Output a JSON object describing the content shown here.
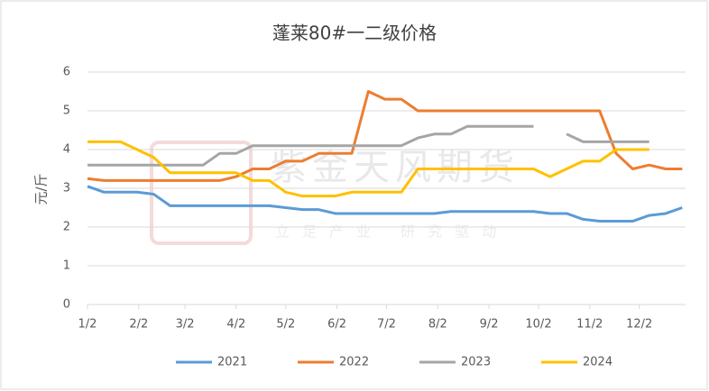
{
  "chart_data": {
    "type": "line",
    "title": "蓬莱80#一二级价格",
    "ylabel": "元/斤",
    "watermark": [
      "紫金天风期货",
      "立足产业 研究驱动"
    ],
    "x": [
      0,
      10,
      20,
      30,
      40,
      50,
      60,
      70,
      80,
      90,
      100,
      110,
      120,
      130,
      140,
      150,
      160,
      170,
      180,
      190,
      200,
      210,
      220,
      230,
      240,
      250,
      260,
      270,
      280,
      290,
      300,
      310,
      320,
      330,
      340,
      350,
      360
    ],
    "xlim": [
      0,
      362
    ],
    "xticks": [
      {
        "value": 0,
        "label": "1/2"
      },
      {
        "value": 31,
        "label": "2/2"
      },
      {
        "value": 59,
        "label": "3/2"
      },
      {
        "value": 90,
        "label": "4/2"
      },
      {
        "value": 120,
        "label": "5/2"
      },
      {
        "value": 151,
        "label": "6/2"
      },
      {
        "value": 181,
        "label": "7/2"
      },
      {
        "value": 212,
        "label": "8/2"
      },
      {
        "value": 243,
        "label": "9/2"
      },
      {
        "value": 273,
        "label": "10/2"
      },
      {
        "value": 304,
        "label": "11/2"
      },
      {
        "value": 334,
        "label": "12/2"
      }
    ],
    "ylim": [
      0,
      6
    ],
    "yticks": [
      0,
      1,
      2,
      3,
      4,
      5,
      6
    ],
    "grid": true,
    "legend": "bottom",
    "series": [
      {
        "name": "2021",
        "color": "#5b9bd5",
        "values": [
          3.05,
          2.9,
          2.9,
          2.9,
          2.85,
          2.55,
          2.55,
          2.55,
          2.55,
          2.55,
          2.55,
          2.55,
          2.5,
          2.45,
          2.45,
          2.35,
          2.35,
          2.35,
          2.35,
          2.35,
          2.35,
          2.35,
          2.4,
          2.4,
          2.4,
          2.4,
          2.4,
          2.4,
          2.35,
          2.35,
          2.2,
          2.15,
          2.15,
          2.15,
          2.3,
          2.35,
          2.5
        ]
      },
      {
        "name": "2022",
        "color": "#ed7d31",
        "values": [
          3.25,
          3.2,
          3.2,
          3.2,
          3.2,
          3.2,
          3.2,
          3.2,
          3.2,
          3.3,
          3.5,
          3.5,
          3.7,
          3.7,
          3.9,
          3.9,
          3.9,
          5.5,
          5.3,
          5.3,
          5.0,
          5.0,
          5.0,
          5.0,
          5.0,
          5.0,
          5.0,
          5.0,
          5.0,
          5.0,
          5.0,
          5.0,
          3.9,
          3.5,
          3.6,
          3.5,
          3.5
        ]
      },
      {
        "name": "2023",
        "color": "#a5a5a5",
        "values": [
          3.6,
          3.6,
          3.6,
          3.6,
          3.6,
          3.6,
          3.6,
          3.6,
          3.9,
          3.9,
          4.1,
          4.1,
          4.1,
          4.1,
          4.1,
          4.1,
          4.1,
          4.1,
          4.1,
          4.1,
          4.3,
          4.4,
          4.4,
          4.6,
          4.6,
          4.6,
          4.6,
          4.6,
          null,
          4.4,
          4.2,
          4.2,
          4.2,
          4.2,
          4.2,
          null,
          null
        ]
      },
      {
        "name": "2024",
        "color": "#ffc000",
        "values": [
          4.2,
          4.2,
          4.2,
          4.0,
          3.8,
          3.4,
          3.4,
          3.4,
          3.4,
          3.4,
          3.2,
          3.2,
          2.9,
          2.8,
          2.8,
          2.8,
          2.9,
          2.9,
          2.9,
          2.9,
          3.5,
          3.5,
          3.5,
          3.5,
          3.5,
          3.5,
          3.5,
          3.5,
          3.3,
          3.5,
          3.7,
          3.7,
          4.0,
          4.0,
          4.0,
          null,
          null
        ]
      }
    ]
  }
}
